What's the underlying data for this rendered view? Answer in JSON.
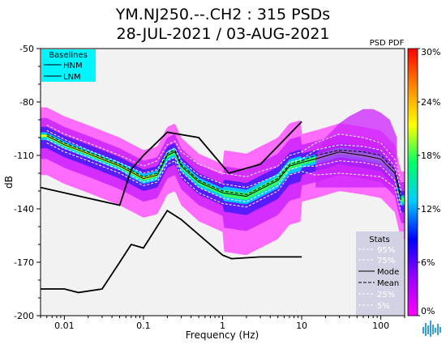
{
  "chart_data": {
    "type": "heatmap",
    "title": "YM.NJ250.--.CH2 : 315 PSDs",
    "subtitle": "28-JUL-2021 / 03-AUG-2021",
    "xlabel": "Frequency (Hz)",
    "ylabel": "dB",
    "x_scale": "log",
    "xlim": [
      0.005,
      200
    ],
    "ylim": [
      -200,
      -50
    ],
    "x_ticks": [
      "0.01",
      "0.1",
      "1",
      "10",
      "100"
    ],
    "y_ticks": [
      "-50",
      "-80",
      "-110",
      "-140",
      "-170",
      "-200"
    ],
    "colorbar": {
      "label": "PSD PDF",
      "ticks": [
        "30%",
        "24%",
        "18%",
        "12%",
        "6%",
        "0%"
      ],
      "stops": [
        "#ff00ff",
        "#9900ff",
        "#0000ff",
        "#00ccff",
        "#00ff66",
        "#ffff00",
        "#ff8800",
        "#ff0000"
      ]
    },
    "baselines": {
      "title": "Baselines",
      "items": [
        "HNM",
        "LNM"
      ],
      "HNM": {
        "freq": [
          0.005,
          0.05,
          0.07,
          0.1,
          0.2,
          0.5,
          1.2,
          3,
          10
        ],
        "db": [
          -128,
          -138,
          -118,
          -110,
          -97,
          -100,
          -120,
          -115,
          -91
        ]
      },
      "LNM": {
        "freq": [
          0.005,
          0.01,
          0.015,
          0.03,
          0.05,
          0.07,
          0.1,
          0.2,
          0.3,
          1,
          1.3,
          3,
          10
        ],
        "db": [
          -185,
          -185,
          -187,
          -185,
          -170,
          -160,
          -162,
          -141,
          -146,
          -166,
          -168,
          -167,
          -167
        ]
      }
    },
    "stats": {
      "title": "Stats",
      "items": [
        "95%",
        "75%",
        "Mode",
        "Mean",
        "25%",
        "5%"
      ],
      "freq": [
        0.006,
        0.01,
        0.02,
        0.05,
        0.1,
        0.15,
        0.2,
        0.25,
        0.3,
        0.5,
        1,
        2,
        3,
        5,
        7,
        10,
        15,
        30,
        60,
        100,
        150,
        180
      ],
      "p95": [
        -93,
        -98,
        -103,
        -110,
        -116,
        -113,
        -104,
        -102,
        -108,
        -115,
        -120,
        -122,
        -119,
        -116,
        -110,
        -108,
        -103,
        -98,
        -100,
        -103,
        -112,
        -125
      ],
      "p75": [
        -96,
        -101,
        -107,
        -114,
        -120,
        -118,
        -108,
        -106,
        -113,
        -121,
        -126,
        -128,
        -125,
        -121,
        -114,
        -112,
        -107,
        -104,
        -105,
        -107,
        -116,
        -130
      ],
      "mode": [
        -99,
        -104,
        -109,
        -116,
        -123,
        -121,
        -110,
        -108,
        -116,
        -125,
        -131,
        -133,
        -129,
        -124,
        -116,
        -114,
        -112,
        -108,
        -110,
        -112,
        -120,
        -135
      ],
      "mean": [
        -98,
        -103,
        -108,
        -115,
        -122,
        -120,
        -109,
        -107,
        -115,
        -124,
        -130,
        -132,
        -128,
        -123,
        -115,
        -113,
        -110,
        -107,
        -108,
        -110,
        -118,
        -133
      ],
      "p25": [
        -101,
        -106,
        -111,
        -118,
        -125,
        -123,
        -113,
        -111,
        -119,
        -128,
        -134,
        -136,
        -132,
        -127,
        -118,
        -116,
        -116,
        -113,
        -114,
        -116,
        -124,
        -138
      ],
      "p5": [
        -103,
        -108,
        -113,
        -120,
        -127,
        -125,
        -115,
        -113,
        -122,
        -131,
        -137,
        -139,
        -135,
        -130,
        -121,
        -119,
        -121,
        -120,
        -121,
        -122,
        -128,
        -142
      ]
    }
  }
}
